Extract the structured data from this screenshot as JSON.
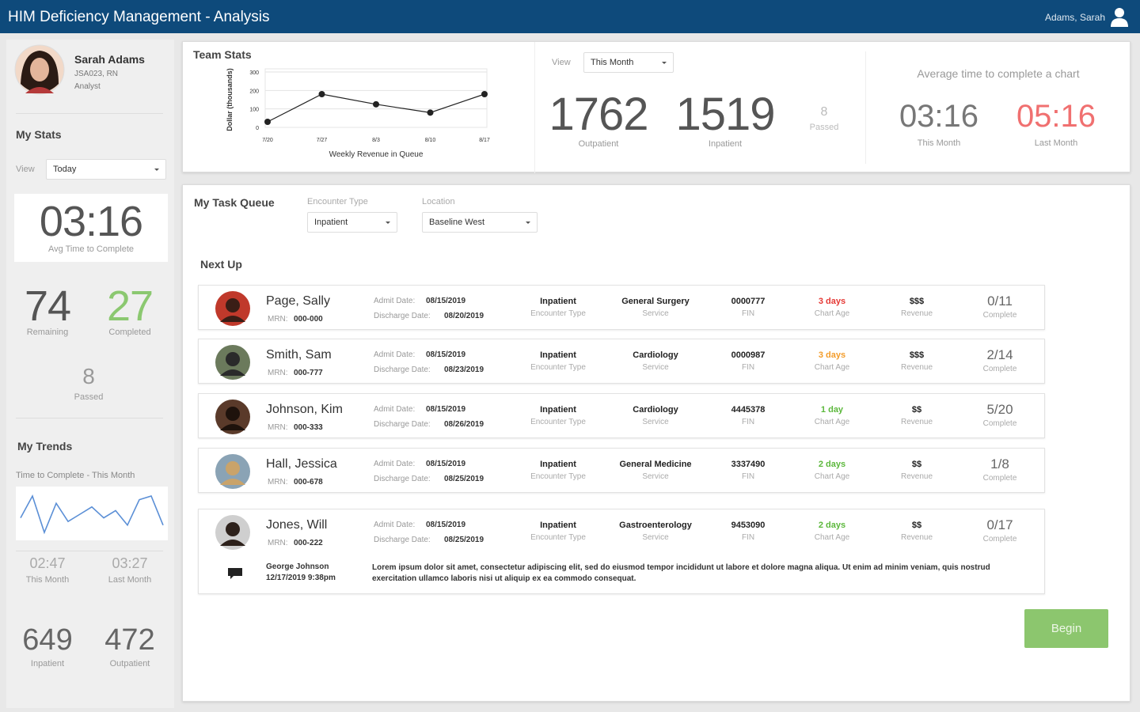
{
  "header": {
    "title": "HIM Deficiency Management - Analysis",
    "user": "Adams, Sarah"
  },
  "profile": {
    "name": "Sarah Adams",
    "id": "JSA023, RN",
    "role": "Analyst"
  },
  "my_stats": {
    "title": "My Stats",
    "view_label": "View",
    "view_value": "Today",
    "avg_time": "03:16",
    "avg_time_label": "Avg Time to Complete",
    "remaining": 74,
    "remaining_label": "Remaining",
    "completed": 27,
    "completed_label": "Completed",
    "passed": 8,
    "passed_label": "Passed"
  },
  "my_trends": {
    "title": "My Trends",
    "subtitle": "Time to Complete - This Month",
    "values": [
      3.0,
      3.6,
      2.6,
      3.4,
      2.9,
      3.1,
      3.3,
      3.0,
      3.2,
      2.8,
      3.5,
      3.6,
      2.8
    ],
    "this_month": "02:47",
    "this_month_label": "This Month",
    "last_month": "03:27",
    "last_month_label": "Last Month",
    "inpatient": 649,
    "inpatient_label": "Inpatient",
    "outpatient": 472,
    "outpatient_label": "Outpatient"
  },
  "team_stats": {
    "type": "line",
    "title": "Team Stats",
    "y_label": "Dollar (thousands)",
    "x_label": "Weekly Revenue in Queue",
    "categories": [
      "7/20",
      "7/27",
      "8/3",
      "8/10",
      "8/17"
    ],
    "values": [
      30,
      180,
      125,
      80,
      180
    ],
    "ylim": [
      0,
      300
    ],
    "yticks": [
      0,
      100,
      200,
      300
    ],
    "color": "#222222",
    "grid": true
  },
  "team_counts": {
    "view_label": "View",
    "view_value": "This Month",
    "outpatient": 1762,
    "outpatient_label": "Outpatient",
    "inpatient": 1519,
    "inpatient_label": "Inpatient",
    "passed": 8,
    "passed_label": "Passed"
  },
  "avg_chart": {
    "title": "Average time to complete a chart",
    "this_month": "03:16",
    "this_month_label": "This Month",
    "last_month": "05:16",
    "last_month_label": "Last Month"
  },
  "queue": {
    "title": "My Task Queue",
    "encounter_label": "Encounter Type",
    "encounter_value": "Inpatient",
    "location_label": "Location",
    "location_value": "Baseline West",
    "next_up": "Next Up",
    "button": "Begin",
    "labels": {
      "mrn": "MRN:",
      "admit": "Admit Date:",
      "discharge": "Discharge Date:",
      "encounter": "Encounter Type",
      "service": "Service",
      "fin": "FIN",
      "chart_age": "Chart Age",
      "revenue": "Revenue",
      "complete": "Complete"
    },
    "rows": [
      {
        "name": "Page, Sally",
        "mrn": "000-000",
        "admit_date": "08/15/2019",
        "discharge_date": "08/20/2019",
        "encounter": "Inpatient",
        "service": "General Surgery",
        "fin": "0000777",
        "chart_age": "3 days",
        "chart_age_color": "#e53935",
        "revenue": "$$$",
        "complete": "0/11"
      },
      {
        "name": "Smith, Sam",
        "mrn": "000-777",
        "admit_date": "08/15/2019",
        "discharge_date": "08/23/2019",
        "encounter": "Inpatient",
        "service": "Cardiology",
        "fin": "0000987",
        "chart_age": "3 days",
        "chart_age_color": "#f39c2a",
        "revenue": "$$$",
        "complete": "2/14"
      },
      {
        "name": "Johnson, Kim",
        "mrn": "000-333",
        "admit_date": "08/15/2019",
        "discharge_date": "08/26/2019",
        "encounter": "Inpatient",
        "service": "Cardiology",
        "fin": "4445378",
        "chart_age": "1 day",
        "chart_age_color": "#5cb83c",
        "revenue": "$$",
        "complete": "5/20"
      },
      {
        "name": "Hall, Jessica",
        "mrn": "000-678",
        "admit_date": "08/15/2019",
        "discharge_date": "08/25/2019",
        "encounter": "Inpatient",
        "service": "General Medicine",
        "fin": "3337490",
        "chart_age": "2 days",
        "chart_age_color": "#5cb83c",
        "revenue": "$$",
        "complete": "1/8"
      },
      {
        "name": "Jones, Will",
        "mrn": "000-222",
        "admit_date": "08/15/2019",
        "discharge_date": "08/25/2019",
        "encounter": "Inpatient",
        "service": "Gastroenterology",
        "fin": "9453090",
        "chart_age": "2 days",
        "chart_age_color": "#5cb83c",
        "revenue": "$$",
        "complete": "0/17",
        "comment": {
          "author": "George Johnson",
          "date": "12/17/2019 9:38pm",
          "text": "Lorem ipsum dolor sit amet, consectetur adipiscing elit, sed do eiusmod tempor incididunt ut labore et dolore magna aliqua. Ut enim ad minim veniam, quis nostrud exercitation ullamco laboris nisi ut aliquip ex ea commodo consequat."
        }
      }
    ]
  }
}
